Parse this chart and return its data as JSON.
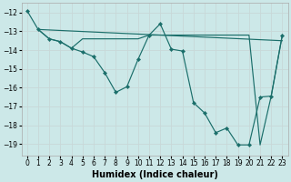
{
  "xlabel": "Humidex (Indice chaleur)",
  "xlim": [
    -0.5,
    23.5
  ],
  "ylim": [
    -19.6,
    -11.5
  ],
  "bg_color": "#cce8e8",
  "grid_color": "#c8d8d8",
  "line_color": "#1a6e6a",
  "series1": {
    "x": [
      0,
      1,
      2,
      3,
      4,
      5,
      6,
      7,
      8,
      9,
      10,
      11,
      12,
      13,
      14,
      15,
      16,
      17,
      18,
      19,
      20,
      21,
      22,
      23
    ],
    "y": [
      -11.9,
      -12.9,
      -13.4,
      -13.55,
      -13.9,
      -14.1,
      -14.35,
      -15.2,
      -16.25,
      -15.95,
      -14.5,
      -13.2,
      -12.6,
      -13.95,
      -14.05,
      -16.8,
      -17.35,
      -18.4,
      -18.15,
      -19.05,
      -19.05,
      -16.5,
      -16.45,
      -13.2
    ]
  },
  "series2": {
    "x": [
      1,
      2,
      3,
      4,
      5,
      6,
      7,
      8,
      9,
      10,
      11,
      12,
      13,
      14,
      15,
      16,
      17,
      18,
      19,
      20,
      21,
      22,
      23
    ],
    "y": [
      -12.9,
      -13.4,
      -13.55,
      -13.9,
      -13.4,
      -13.4,
      -13.4,
      -13.4,
      -13.4,
      -13.4,
      -13.2,
      -13.2,
      -13.2,
      -13.2,
      -13.2,
      -13.2,
      -13.2,
      -13.2,
      -13.2,
      -13.2,
      -19.05,
      -16.45,
      -13.2
    ]
  },
  "series3": {
    "x": [
      1,
      23
    ],
    "y": [
      -12.9,
      -13.5
    ]
  },
  "xticks": [
    0,
    1,
    2,
    3,
    4,
    5,
    6,
    7,
    8,
    9,
    10,
    11,
    12,
    13,
    14,
    15,
    16,
    17,
    18,
    19,
    20,
    21,
    22,
    23
  ],
  "yticks": [
    -12,
    -13,
    -14,
    -15,
    -16,
    -17,
    -18,
    -19
  ],
  "tick_fontsize": 5.5,
  "label_fontsize": 7
}
